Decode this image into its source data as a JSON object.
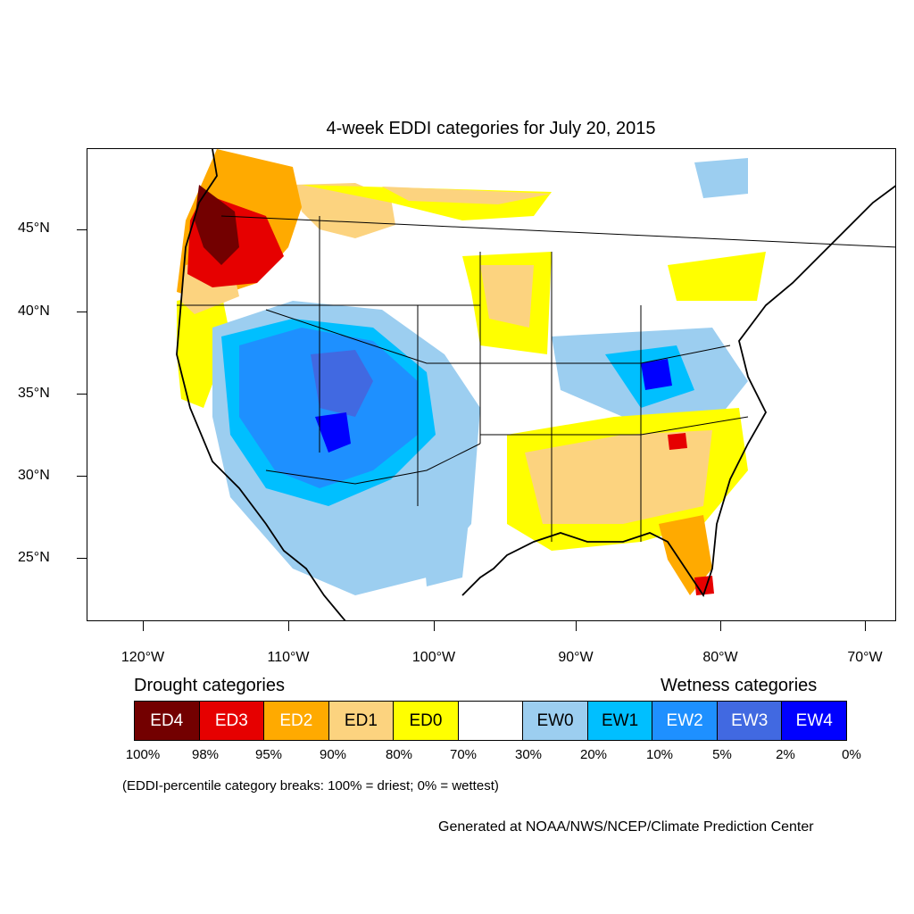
{
  "title": "4-week EDDI categories for July 20, 2015",
  "lat_labels": [
    "45°N",
    "40°N",
    "35°N",
    "30°N",
    "25°N"
  ],
  "lon_labels": [
    "120°W",
    "110°W",
    "100°W",
    "90°W",
    "80°W",
    "70°W"
  ],
  "legend": {
    "drought_heading": "Drought categories",
    "wetness_heading": "Wetness categories",
    "categories": [
      {
        "label": "ED4",
        "color": "#730000",
        "text_color": "#ffffff"
      },
      {
        "label": "ED3",
        "color": "#e60000",
        "text_color": "#ffffff"
      },
      {
        "label": "ED2",
        "color": "#ffaa00",
        "text_color": "#ffffff"
      },
      {
        "label": "ED1",
        "color": "#fcd37f",
        "text_color": "#000000"
      },
      {
        "label": "ED0",
        "color": "#ffff00",
        "text_color": "#000000"
      },
      {
        "label": "",
        "color": "#ffffff",
        "text_color": "#000000"
      },
      {
        "label": "EW0",
        "color": "#9ccef0",
        "text_color": "#000000"
      },
      {
        "label": "EW1",
        "color": "#00bfff",
        "text_color": "#000000"
      },
      {
        "label": "EW2",
        "color": "#1e90ff",
        "text_color": "#ffffff"
      },
      {
        "label": "EW3",
        "color": "#4169e1",
        "text_color": "#ffffff"
      },
      {
        "label": "EW4",
        "color": "#0000ff",
        "text_color": "#ffffff"
      }
    ],
    "percentiles": [
      "100%",
      "98%",
      "95%",
      "90%",
      "80%",
      "70%",
      "30%",
      "20%",
      "10%",
      "5%",
      "2%",
      "0%"
    ]
  },
  "note": "(EDDI-percentile category breaks: 100% = driest; 0% = wettest)",
  "credit": "Generated at NOAA/NWS/NCEP/Climate Prediction Center"
}
